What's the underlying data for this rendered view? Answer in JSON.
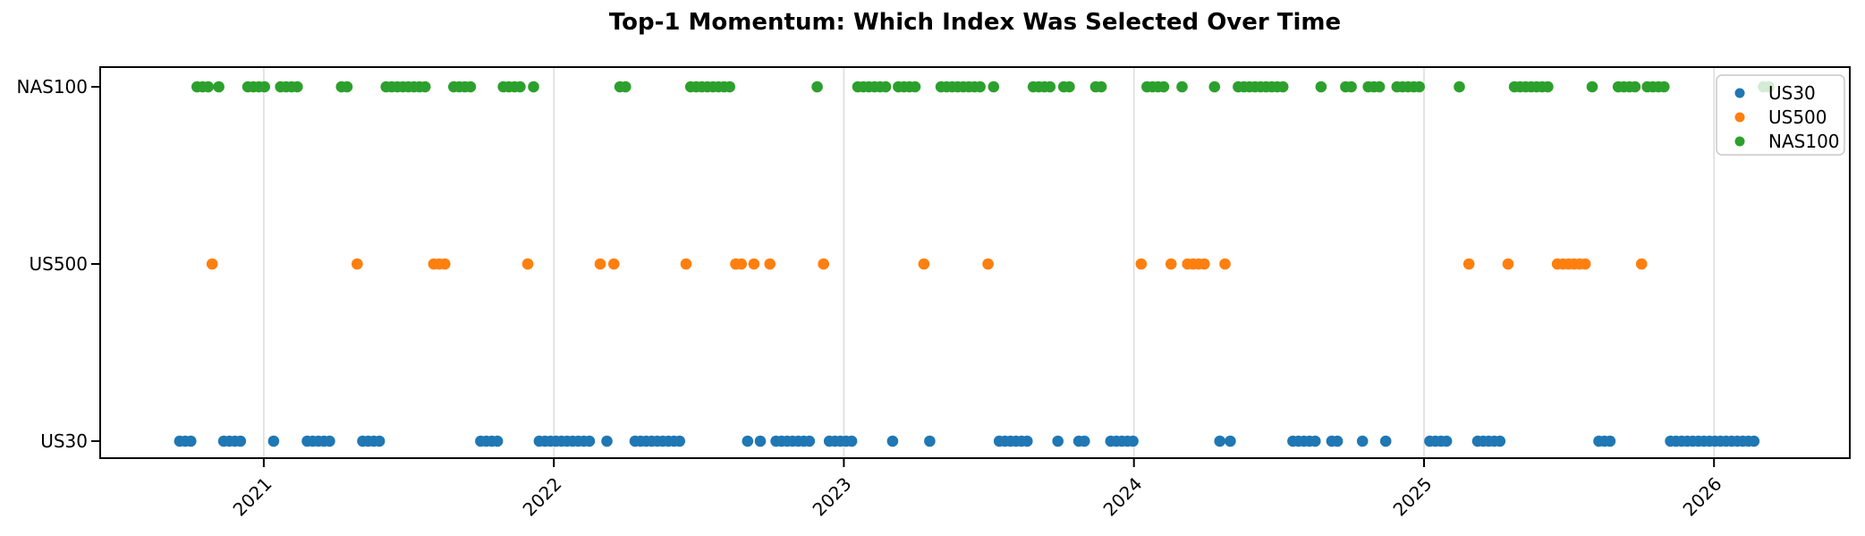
{
  "chart_data": {
    "type": "scatter",
    "title": "Top-1 Momentum: Which Index Was Selected Over Time",
    "subtitle": "",
    "x_axis": {
      "tick_years": [
        2021,
        2022,
        2023,
        2024,
        2025,
        2026
      ],
      "range": [
        2020.436,
        2026.468
      ],
      "grid": true,
      "tick_rotation_deg": 45
    },
    "y_axis": {
      "categories": [
        {
          "label": "US30",
          "value": 0
        },
        {
          "label": "US500",
          "value": 1
        },
        {
          "label": "NAS100",
          "value": 2
        }
      ],
      "range": [
        -0.105,
        2.105
      ],
      "grid": false
    },
    "legend": {
      "position": "upper-right",
      "entries": [
        {
          "label": "US30",
          "color": "#1f77b4"
        },
        {
          "label": "US500",
          "color": "#ff7f0e"
        },
        {
          "label": "NAS100",
          "color": "#2ca02c"
        }
      ]
    },
    "series_colors": {
      "US30": "#1f77b4",
      "US500": "#ff7f0e",
      "NAS100": "#2ca02c"
    },
    "sampling": "weekly",
    "week_step_years": 0.019164,
    "selection_runs": [
      {
        "index": "US30",
        "start": 2020.71,
        "end": 2020.75
      },
      {
        "index": "NAS100",
        "start": 2020.77,
        "end": 2020.81
      },
      {
        "index": "US500",
        "start": 2020.822,
        "end": 2020.822
      },
      {
        "index": "NAS100",
        "start": 2020.845,
        "end": 2020.845
      },
      {
        "index": "US30",
        "start": 2020.862,
        "end": 2020.926
      },
      {
        "index": "NAS100",
        "start": 2020.945,
        "end": 2021.015
      },
      {
        "index": "US30",
        "start": 2021.034,
        "end": 2021.034
      },
      {
        "index": "NAS100",
        "start": 2021.058,
        "end": 2021.13
      },
      {
        "index": "US30",
        "start": 2021.15,
        "end": 2021.245
      },
      {
        "index": "NAS100",
        "start": 2021.268,
        "end": 2021.3
      },
      {
        "index": "US500",
        "start": 2021.322,
        "end": 2021.322
      },
      {
        "index": "US30",
        "start": 2021.341,
        "end": 2021.404
      },
      {
        "index": "NAS100",
        "start": 2021.422,
        "end": 2021.567
      },
      {
        "index": "US500",
        "start": 2021.586,
        "end": 2021.638
      },
      {
        "index": "NAS100",
        "start": 2021.655,
        "end": 2021.731
      },
      {
        "index": "US30",
        "start": 2021.748,
        "end": 2021.808
      },
      {
        "index": "NAS100",
        "start": 2021.826,
        "end": 2021.89
      },
      {
        "index": "US500",
        "start": 2021.91,
        "end": 2021.91
      },
      {
        "index": "NAS100",
        "start": 2021.93,
        "end": 2021.93
      },
      {
        "index": "US30",
        "start": 2021.95,
        "end": 2022.14
      },
      {
        "index": "US500",
        "start": 2022.16,
        "end": 2022.16
      },
      {
        "index": "US30",
        "start": 2022.183,
        "end": 2022.183
      },
      {
        "index": "US500",
        "start": 2022.207,
        "end": 2022.207
      },
      {
        "index": "NAS100",
        "start": 2022.228,
        "end": 2022.26
      },
      {
        "index": "US30",
        "start": 2022.28,
        "end": 2022.44
      },
      {
        "index": "US500",
        "start": 2022.456,
        "end": 2022.456
      },
      {
        "index": "NAS100",
        "start": 2022.472,
        "end": 2022.61
      },
      {
        "index": "US500",
        "start": 2022.627,
        "end": 2022.647
      },
      {
        "index": "US30",
        "start": 2022.668,
        "end": 2022.668
      },
      {
        "index": "US500",
        "start": 2022.69,
        "end": 2022.69
      },
      {
        "index": "US30",
        "start": 2022.712,
        "end": 2022.712
      },
      {
        "index": "US500",
        "start": 2022.745,
        "end": 2022.745
      },
      {
        "index": "US30",
        "start": 2022.766,
        "end": 2022.89
      },
      {
        "index": "NAS100",
        "start": 2022.908,
        "end": 2022.908
      },
      {
        "index": "US500",
        "start": 2022.93,
        "end": 2022.93
      },
      {
        "index": "US30",
        "start": 2022.95,
        "end": 2023.028
      },
      {
        "index": "NAS100",
        "start": 2023.048,
        "end": 2023.15
      },
      {
        "index": "US30",
        "start": 2023.168,
        "end": 2023.168
      },
      {
        "index": "NAS100",
        "start": 2023.188,
        "end": 2023.256
      },
      {
        "index": "US500",
        "start": 2023.276,
        "end": 2023.276
      },
      {
        "index": "US30",
        "start": 2023.296,
        "end": 2023.315
      },
      {
        "index": "NAS100",
        "start": 2023.335,
        "end": 2023.478
      },
      {
        "index": "US500",
        "start": 2023.497,
        "end": 2023.497
      },
      {
        "index": "NAS100",
        "start": 2023.516,
        "end": 2023.516
      },
      {
        "index": "US30",
        "start": 2023.536,
        "end": 2023.633
      },
      {
        "index": "NAS100",
        "start": 2023.653,
        "end": 2023.718
      },
      {
        "index": "US30",
        "start": 2023.738,
        "end": 2023.738
      },
      {
        "index": "NAS100",
        "start": 2023.758,
        "end": 2023.79
      },
      {
        "index": "US30",
        "start": 2023.81,
        "end": 2023.848
      },
      {
        "index": "NAS100",
        "start": 2023.868,
        "end": 2023.9
      },
      {
        "index": "US30",
        "start": 2023.92,
        "end": 2024.005
      },
      {
        "index": "US500",
        "start": 2024.025,
        "end": 2024.025
      },
      {
        "index": "NAS100",
        "start": 2024.045,
        "end": 2024.11
      },
      {
        "index": "US500",
        "start": 2024.128,
        "end": 2024.147
      },
      {
        "index": "NAS100",
        "start": 2024.166,
        "end": 2024.166
      },
      {
        "index": "US500",
        "start": 2024.185,
        "end": 2024.26
      },
      {
        "index": "NAS100",
        "start": 2024.278,
        "end": 2024.278
      },
      {
        "index": "US30",
        "start": 2024.296,
        "end": 2024.296
      },
      {
        "index": "US500",
        "start": 2024.314,
        "end": 2024.314
      },
      {
        "index": "US30",
        "start": 2024.332,
        "end": 2024.332
      },
      {
        "index": "NAS100",
        "start": 2024.36,
        "end": 2024.53
      },
      {
        "index": "US30",
        "start": 2024.548,
        "end": 2024.625
      },
      {
        "index": "NAS100",
        "start": 2024.645,
        "end": 2024.664
      },
      {
        "index": "US30",
        "start": 2024.682,
        "end": 2024.71
      },
      {
        "index": "NAS100",
        "start": 2024.73,
        "end": 2024.768
      },
      {
        "index": "US30",
        "start": 2024.788,
        "end": 2024.788
      },
      {
        "index": "NAS100",
        "start": 2024.808,
        "end": 2024.85
      },
      {
        "index": "US30",
        "start": 2024.868,
        "end": 2024.887
      },
      {
        "index": "NAS100",
        "start": 2024.907,
        "end": 2025.0
      },
      {
        "index": "US30",
        "start": 2025.02,
        "end": 2025.09
      },
      {
        "index": "NAS100",
        "start": 2025.122,
        "end": 2025.122
      },
      {
        "index": "US500",
        "start": 2025.155,
        "end": 2025.155
      },
      {
        "index": "US30",
        "start": 2025.185,
        "end": 2025.27
      },
      {
        "index": "US500",
        "start": 2025.29,
        "end": 2025.29
      },
      {
        "index": "NAS100",
        "start": 2025.312,
        "end": 2025.44
      },
      {
        "index": "US500",
        "start": 2025.46,
        "end": 2025.56
      },
      {
        "index": "NAS100",
        "start": 2025.58,
        "end": 2025.58
      },
      {
        "index": "US30",
        "start": 2025.603,
        "end": 2025.65
      },
      {
        "index": "NAS100",
        "start": 2025.67,
        "end": 2025.73
      },
      {
        "index": "US500",
        "start": 2025.75,
        "end": 2025.75
      },
      {
        "index": "NAS100",
        "start": 2025.77,
        "end": 2025.83
      },
      {
        "index": "US30",
        "start": 2025.85,
        "end": 2026.14
      },
      {
        "index": "NAS100",
        "start": 2026.17,
        "end": 2026.205
      }
    ]
  },
  "style": {
    "grid_color": "#dcdcdc",
    "spine_color": "#000000",
    "legend_border_color": "#c9c9c9",
    "legend_bg": "rgba(255,255,255,0.8)",
    "dot_radius": 6.3
  }
}
